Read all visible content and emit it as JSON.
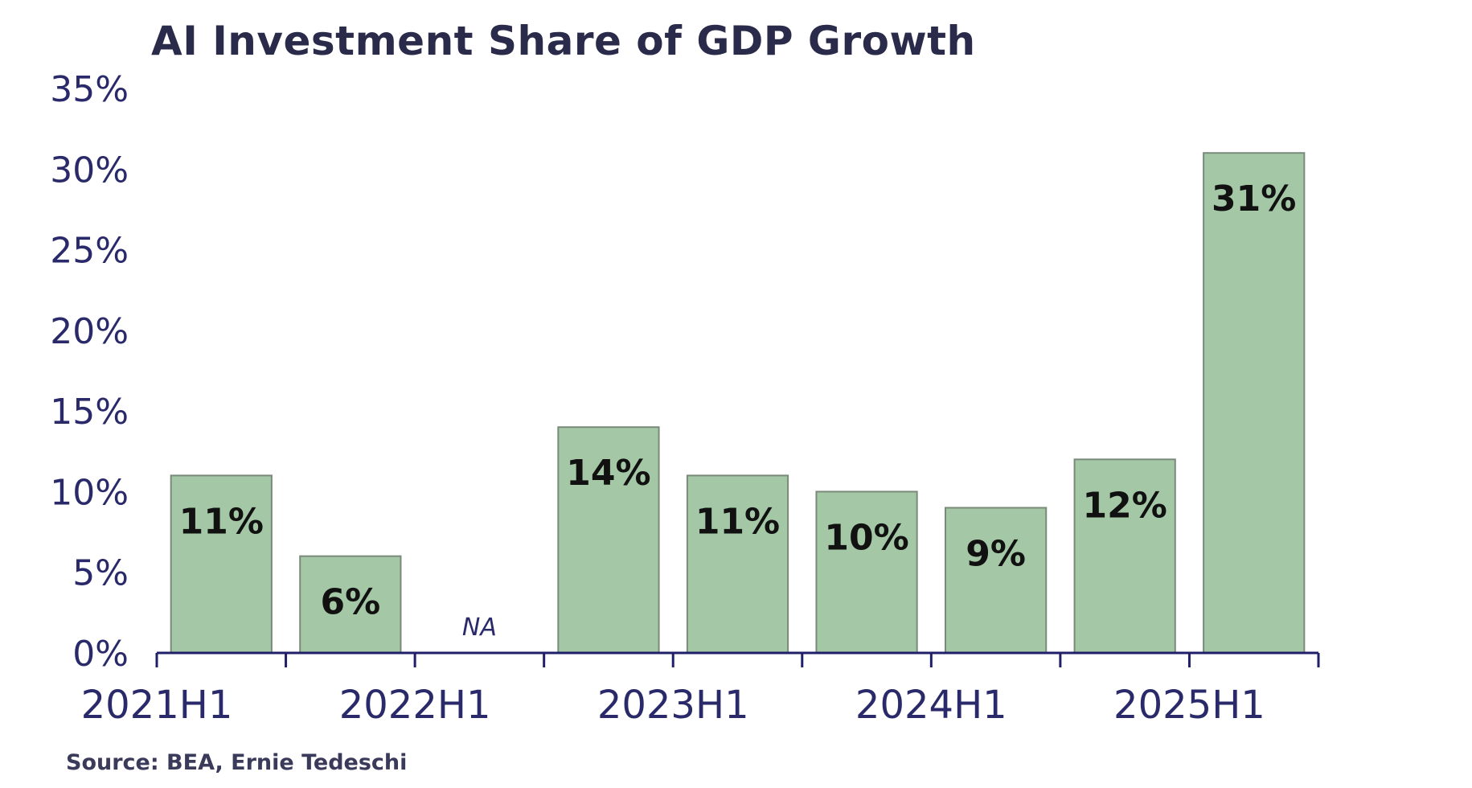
{
  "chart_data": {
    "type": "bar",
    "title": "AI Investment Share of GDP Growth",
    "source": "Source: BEA, Ernie Tedeschi",
    "categories": [
      "2021H1",
      "",
      "2022H1",
      "",
      "2023H1",
      "",
      "2024H1",
      "",
      "2025H1"
    ],
    "values": [
      11,
      6,
      null,
      14,
      11,
      10,
      9,
      12,
      31
    ],
    "data_labels": [
      "11%",
      "6%",
      "NA",
      "14%",
      "11%",
      "10%",
      "9%",
      "12%",
      "31%"
    ],
    "ylim": [
      0,
      35
    ],
    "y_ticks": [
      "0%",
      "5%",
      "10%",
      "15%",
      "20%",
      "25%",
      "30%",
      "35%"
    ],
    "x_tick_labels": [
      "2021H1",
      "2022H1",
      "2023H1",
      "2024H1",
      "2025H1"
    ],
    "bar_color": "#a4c8a6",
    "grid": false,
    "legend": "none"
  }
}
